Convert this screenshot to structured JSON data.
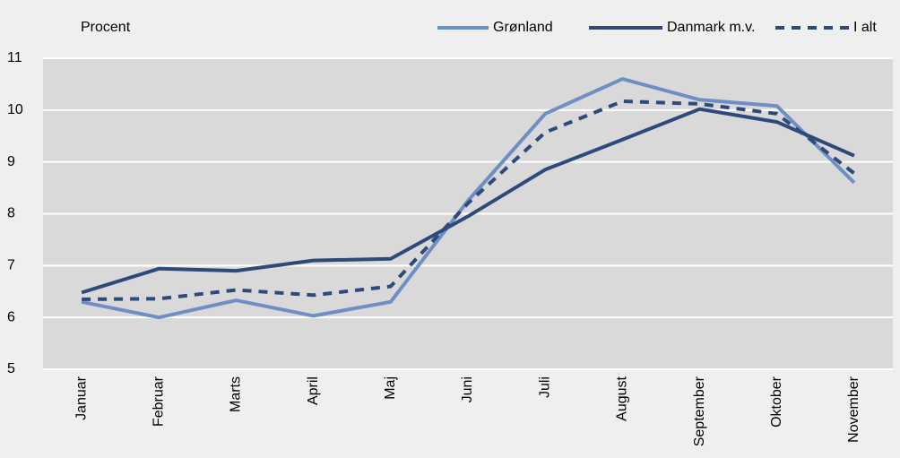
{
  "chart_data": {
    "type": "line",
    "y_label": "Procent",
    "categories": [
      "Januar",
      "Februar",
      "Marts",
      "April",
      "Maj",
      "Juni",
      "Juli",
      "August",
      "September",
      "Oktober",
      "November"
    ],
    "series": [
      {
        "name": "Grønland",
        "color": "#6f8fc4",
        "dashed": false,
        "values": [
          6.3,
          6.0,
          6.33,
          6.03,
          6.3,
          8.25,
          9.93,
          10.6,
          10.2,
          10.08,
          8.6
        ]
      },
      {
        "name": "Danmark m.v.",
        "color": "#2e4a7a",
        "dashed": false,
        "values": [
          6.48,
          6.94,
          6.9,
          7.1,
          7.13,
          7.95,
          8.85,
          9.43,
          10.02,
          9.77,
          9.12
        ]
      },
      {
        "name": "I alt",
        "color": "#2e4a7a",
        "dashed": true,
        "values": [
          6.35,
          6.36,
          6.53,
          6.43,
          6.6,
          8.2,
          9.57,
          10.17,
          10.12,
          9.93,
          8.78
        ]
      }
    ],
    "ylim": [
      5,
      11
    ],
    "yticks": [
      5,
      6,
      7,
      8,
      9,
      10,
      11
    ],
    "grid": true,
    "legend": "top-right"
  }
}
